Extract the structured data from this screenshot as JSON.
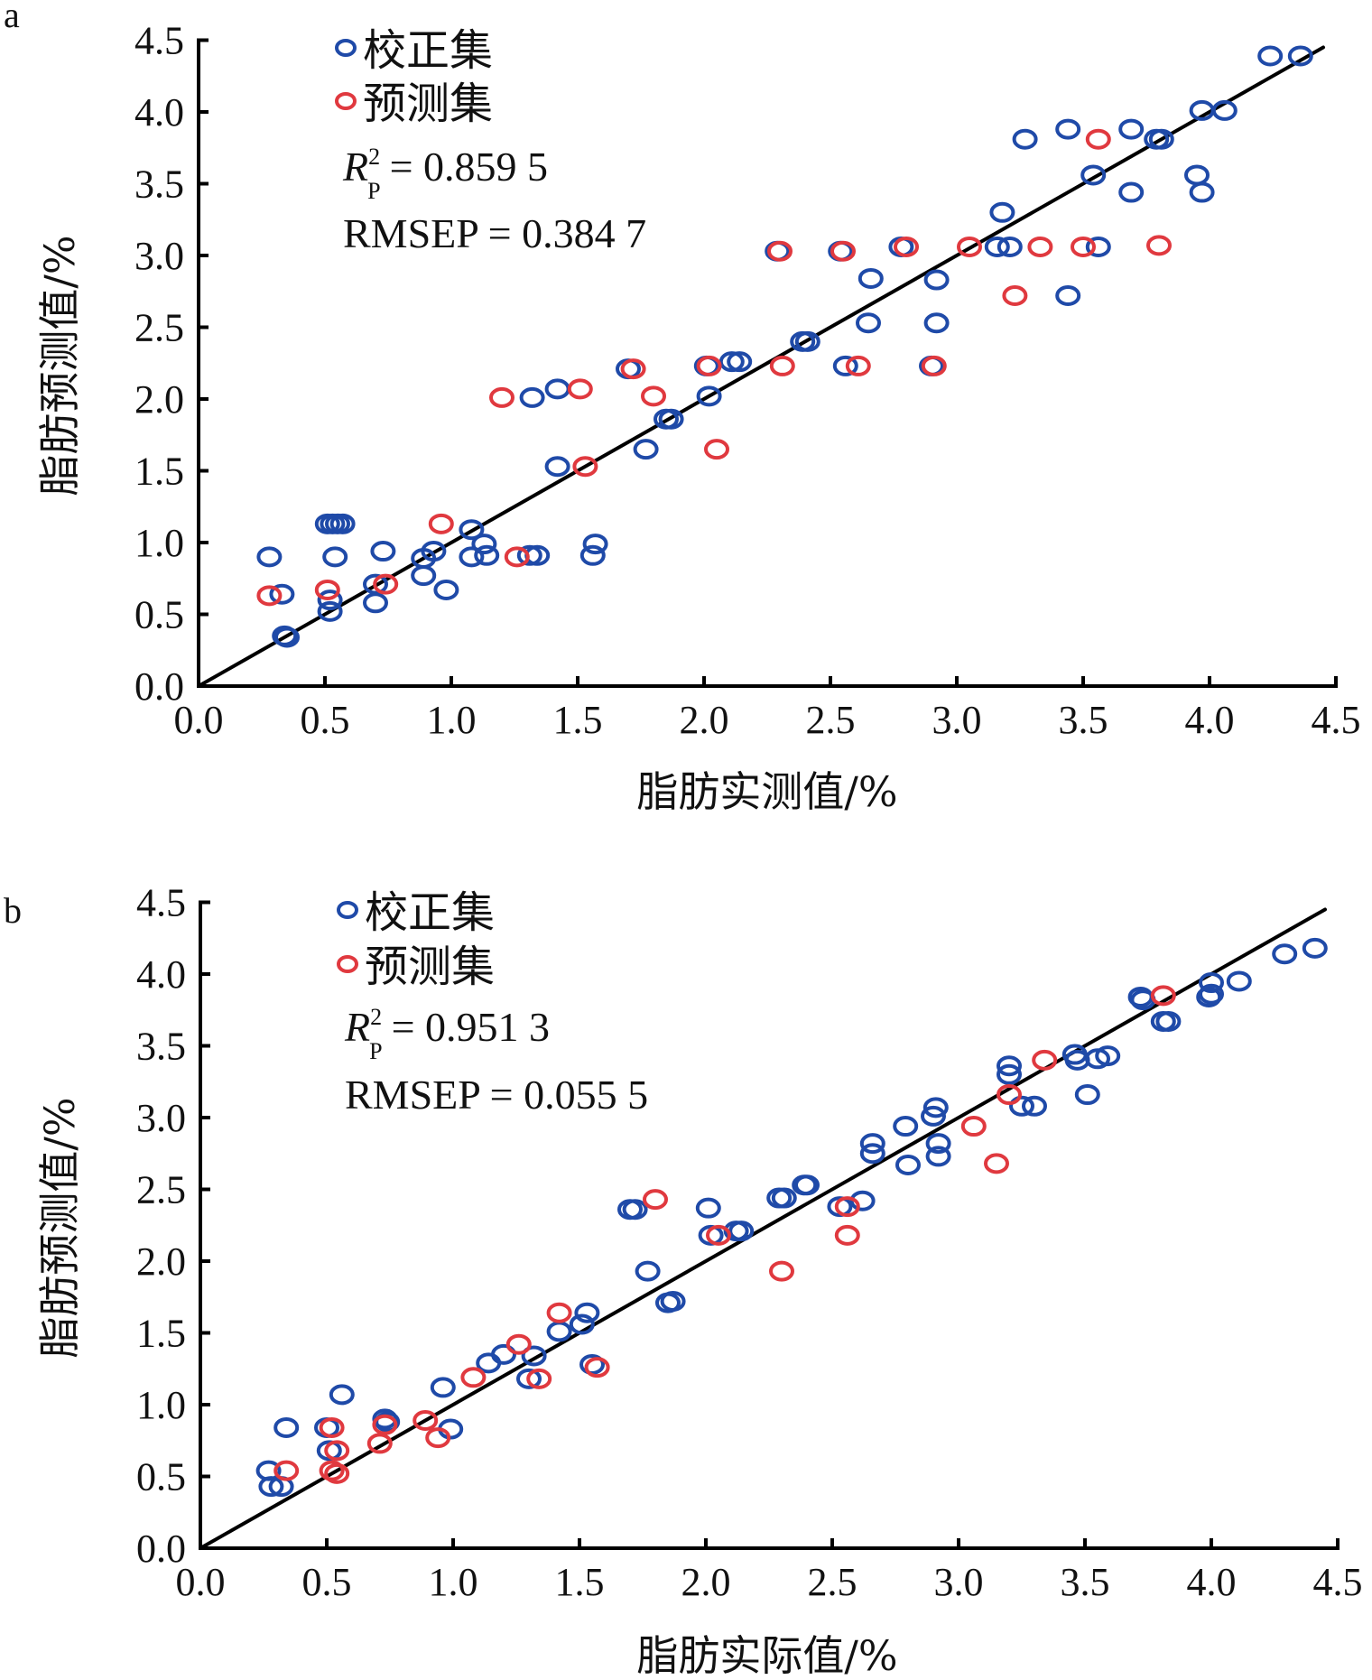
{
  "chart_data": [
    {
      "panel": "a",
      "type": "scatter",
      "title": "",
      "xlabel": "脂肪实测值/%",
      "ylabel": "脂肪预测值/%",
      "xlim": [
        0,
        4.5
      ],
      "ylim": [
        0,
        4.5
      ],
      "xticks": [
        "0.0",
        "0.5",
        "1.0",
        "1.5",
        "2.0",
        "2.5",
        "3.0",
        "3.5",
        "4.0",
        "4.5"
      ],
      "yticks": [
        "0.0",
        "0.5",
        "1.0",
        "1.5",
        "2.0",
        "2.5",
        "3.0",
        "3.5",
        "4.0",
        "4.5"
      ],
      "grid": false,
      "legend_position": "top-left",
      "reference_line": {
        "type": "y=x",
        "from": 0,
        "to": 4.45
      },
      "stats": {
        "r2_label": "R",
        "r2_sup": "2",
        "r2_sub": "P",
        "r2_value": "= 0.859 5",
        "rmsep_text": "RMSEP = 0.384 7"
      },
      "series": [
        {
          "name": "校正集",
          "color": "#1f4aa8",
          "points": [
            [
              0.28,
              0.9
            ],
            [
              0.33,
              0.64
            ],
            [
              0.34,
              0.35
            ],
            [
              0.35,
              0.34
            ],
            [
              0.51,
              1.13
            ],
            [
              0.53,
              1.13
            ],
            [
              0.55,
              1.13
            ],
            [
              0.57,
              1.13
            ],
            [
              0.54,
              0.9
            ],
            [
              0.52,
              0.52
            ],
            [
              0.52,
              0.6
            ],
            [
              0.73,
              0.94
            ],
            [
              0.7,
              0.71
            ],
            [
              0.7,
              0.58
            ],
            [
              0.89,
              0.89
            ],
            [
              0.93,
              0.94
            ],
            [
              0.89,
              0.77
            ],
            [
              0.98,
              0.67
            ],
            [
              1.08,
              1.09
            ],
            [
              1.13,
              0.99
            ],
            [
              1.08,
              0.9
            ],
            [
              1.14,
              0.91
            ],
            [
              1.31,
              0.91
            ],
            [
              1.34,
              0.91
            ],
            [
              1.42,
              1.53
            ],
            [
              1.57,
              0.99
            ],
            [
              1.56,
              0.91
            ],
            [
              1.32,
              2.01
            ],
            [
              1.42,
              2.07
            ],
            [
              1.7,
              2.21
            ],
            [
              1.77,
              1.65
            ],
            [
              1.85,
              1.86
            ],
            [
              1.87,
              1.86
            ],
            [
              2.02,
              2.02
            ],
            [
              2.01,
              2.23
            ],
            [
              2.11,
              2.26
            ],
            [
              2.14,
              2.26
            ],
            [
              2.29,
              3.03
            ],
            [
              2.39,
              2.4
            ],
            [
              2.41,
              2.4
            ],
            [
              2.54,
              3.03
            ],
            [
              2.56,
              2.23
            ],
            [
              2.66,
              2.84
            ],
            [
              2.65,
              2.53
            ],
            [
              2.78,
              3.06
            ],
            [
              2.92,
              2.83
            ],
            [
              2.92,
              2.53
            ],
            [
              2.9,
              2.23
            ],
            [
              3.16,
              3.06
            ],
            [
              3.21,
              3.06
            ],
            [
              3.18,
              3.3
            ],
            [
              3.27,
              3.81
            ],
            [
              3.44,
              3.88
            ],
            [
              3.44,
              2.72
            ],
            [
              3.54,
              3.56
            ],
            [
              3.56,
              3.06
            ],
            [
              3.69,
              3.88
            ],
            [
              3.69,
              3.44
            ],
            [
              3.79,
              3.81
            ],
            [
              3.81,
              3.81
            ],
            [
              3.95,
              3.56
            ],
            [
              3.97,
              3.44
            ],
            [
              3.97,
              4.01
            ],
            [
              4.06,
              4.01
            ],
            [
              4.24,
              4.39
            ],
            [
              4.36,
              4.39
            ]
          ]
        },
        {
          "name": "预测集",
          "color": "#e0393f",
          "points": [
            [
              0.28,
              0.63
            ],
            [
              0.51,
              0.67
            ],
            [
              0.74,
              0.71
            ],
            [
              0.96,
              1.13
            ],
            [
              1.26,
              0.9
            ],
            [
              1.2,
              2.01
            ],
            [
              1.51,
              2.07
            ],
            [
              1.53,
              1.53
            ],
            [
              1.72,
              2.21
            ],
            [
              1.8,
              2.02
            ],
            [
              2.02,
              2.23
            ],
            [
              2.05,
              1.65
            ],
            [
              2.3,
              3.03
            ],
            [
              2.31,
              2.23
            ],
            [
              2.55,
              3.03
            ],
            [
              2.61,
              2.23
            ],
            [
              2.8,
              3.06
            ],
            [
              2.91,
              2.23
            ],
            [
              3.05,
              3.06
            ],
            [
              3.23,
              2.72
            ],
            [
              3.33,
              3.06
            ],
            [
              3.5,
              3.06
            ],
            [
              3.56,
              3.81
            ],
            [
              3.8,
              3.07
            ]
          ]
        }
      ]
    },
    {
      "panel": "b",
      "type": "scatter",
      "title": "",
      "xlabel": "脂肪实际值/%",
      "ylabel": "脂肪预测值/%",
      "xlim": [
        0,
        4.5
      ],
      "ylim": [
        0,
        4.5
      ],
      "xticks": [
        "0.0",
        "0.5",
        "1.0",
        "1.5",
        "2.0",
        "2.5",
        "3.0",
        "3.5",
        "4.0",
        "4.5"
      ],
      "yticks": [
        "0.0",
        "0.5",
        "1.0",
        "1.5",
        "2.0",
        "2.5",
        "3.0",
        "3.5",
        "4.0",
        "4.5"
      ],
      "grid": false,
      "legend_position": "top-left",
      "reference_line": {
        "type": "y=x",
        "from": 0,
        "to": 4.45
      },
      "stats": {
        "r2_label": "R",
        "r2_sup": "2",
        "r2_sub": "P",
        "r2_value": "= 0.951 3",
        "rmsep_text": "RMSEP = 0.055 5"
      },
      "series": [
        {
          "name": "校正集",
          "color": "#1f4aa8",
          "points": [
            [
              0.27,
              0.54
            ],
            [
              0.28,
              0.43
            ],
            [
              0.32,
              0.43
            ],
            [
              0.34,
              0.84
            ],
            [
              0.5,
              0.84
            ],
            [
              0.51,
              0.68
            ],
            [
              0.56,
              1.07
            ],
            [
              0.74,
              0.88
            ],
            [
              0.73,
              0.9
            ],
            [
              0.96,
              1.12
            ],
            [
              0.99,
              0.83
            ],
            [
              1.14,
              1.29
            ],
            [
              1.2,
              1.35
            ],
            [
              1.3,
              1.18
            ],
            [
              1.32,
              1.34
            ],
            [
              1.42,
              1.51
            ],
            [
              1.51,
              1.56
            ],
            [
              1.53,
              1.64
            ],
            [
              1.55,
              1.28
            ],
            [
              1.7,
              2.36
            ],
            [
              1.72,
              2.36
            ],
            [
              1.77,
              1.93
            ],
            [
              1.85,
              1.71
            ],
            [
              1.87,
              1.72
            ],
            [
              2.01,
              2.37
            ],
            [
              2.02,
              2.18
            ],
            [
              2.12,
              2.21
            ],
            [
              2.14,
              2.21
            ],
            [
              2.29,
              2.44
            ],
            [
              2.31,
              2.44
            ],
            [
              2.39,
              2.53
            ],
            [
              2.4,
              2.53
            ],
            [
              2.53,
              2.38
            ],
            [
              2.62,
              2.42
            ],
            [
              2.66,
              2.82
            ],
            [
              2.66,
              2.75
            ],
            [
              2.79,
              2.94
            ],
            [
              2.8,
              2.67
            ],
            [
              2.9,
              3.01
            ],
            [
              2.91,
              3.07
            ],
            [
              2.92,
              2.82
            ],
            [
              2.92,
              2.73
            ],
            [
              3.2,
              3.36
            ],
            [
              3.2,
              3.3
            ],
            [
              3.25,
              3.08
            ],
            [
              3.3,
              3.08
            ],
            [
              3.46,
              3.44
            ],
            [
              3.47,
              3.4
            ],
            [
              3.51,
              3.16
            ],
            [
              3.55,
              3.41
            ],
            [
              3.59,
              3.43
            ],
            [
              3.72,
              3.84
            ],
            [
              3.73,
              3.82
            ],
            [
              3.81,
              3.67
            ],
            [
              3.83,
              3.67
            ],
            [
              3.99,
              3.84
            ],
            [
              4.0,
              3.86
            ],
            [
              4.0,
              3.94
            ],
            [
              4.11,
              3.95
            ],
            [
              4.29,
              4.14
            ],
            [
              4.41,
              4.18
            ]
          ]
        },
        {
          "name": "预测集",
          "color": "#e0393f",
          "points": [
            [
              0.34,
              0.54
            ],
            [
              0.52,
              0.84
            ],
            [
              0.52,
              0.54
            ],
            [
              0.54,
              0.68
            ],
            [
              0.54,
              0.52
            ],
            [
              0.71,
              0.73
            ],
            [
              0.73,
              0.86
            ],
            [
              0.89,
              0.89
            ],
            [
              0.94,
              0.77
            ],
            [
              1.08,
              1.19
            ],
            [
              1.26,
              1.42
            ],
            [
              1.34,
              1.18
            ],
            [
              1.42,
              1.64
            ],
            [
              1.57,
              1.26
            ],
            [
              1.8,
              2.43
            ],
            [
              2.05,
              2.18
            ],
            [
              2.3,
              1.93
            ],
            [
              2.56,
              2.38
            ],
            [
              2.56,
              2.18
            ],
            [
              3.06,
              2.94
            ],
            [
              3.15,
              2.68
            ],
            [
              3.2,
              3.16
            ],
            [
              3.34,
              3.4
            ],
            [
              3.81,
              3.85
            ]
          ]
        }
      ]
    }
  ]
}
